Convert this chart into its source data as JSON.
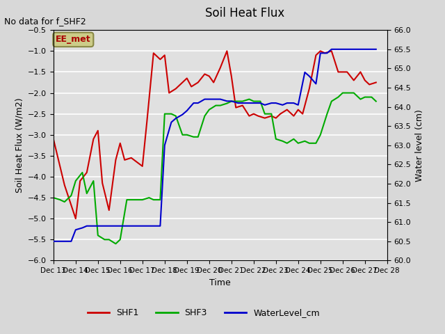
{
  "title": "Soil Heat Flux",
  "note": "No data for f_SHF2",
  "xlabel": "Time",
  "ylabel_left": "Soil Heat Flux (W/m2)",
  "ylabel_right": "Water level (cm)",
  "ylim_left": [
    -6.0,
    -0.5
  ],
  "ylim_right": [
    60.0,
    66.0
  ],
  "yticks_left": [
    -6.0,
    -5.5,
    -5.0,
    -4.5,
    -4.0,
    -3.5,
    -3.0,
    -2.5,
    -2.0,
    -1.5,
    -1.0,
    -0.5
  ],
  "yticks_right": [
    60.0,
    60.5,
    61.0,
    61.5,
    62.0,
    62.5,
    63.0,
    63.5,
    64.0,
    64.5,
    65.0,
    65.5,
    66.0
  ],
  "xtick_labels": [
    "Dec 13",
    "Dec 14",
    "Dec 15",
    "Dec 16",
    "Dec 17",
    "Dec 18",
    "Dec 19",
    "Dec 20",
    "Dec 21",
    "Dec 22",
    "Dec 23",
    "Dec 24",
    "Dec 25",
    "Dec 26",
    "Dec 27",
    "Dec 28"
  ],
  "legend_labels": [
    "SHF1",
    "SHF3",
    "WaterLevel_cm"
  ],
  "legend_colors": [
    "#cc0000",
    "#00aa00",
    "#0000cc"
  ],
  "ee_met_box_color": "#cccc88",
  "ee_met_text_color": "#aa0000",
  "background_color": "#e8e8e8",
  "plot_bg_color": "#e0e0e0",
  "grid_color": "#ffffff",
  "shf1_color": "#cc0000",
  "shf3_color": "#00aa00",
  "water_color": "#0000cc",
  "shf1_x": [
    13,
    13.5,
    14,
    14.2,
    14.5,
    14.8,
    15.0,
    15.2,
    15.5,
    15.8,
    16.0,
    16.2,
    16.5,
    17.0,
    17.2,
    17.5,
    17.8,
    18.0,
    18.2,
    18.5,
    18.8,
    19.0,
    19.2,
    19.5,
    19.8,
    20.0,
    20.2,
    20.5,
    20.8,
    21.0,
    21.2,
    21.5,
    21.8,
    22.0,
    22.2,
    22.5,
    22.8,
    23.0,
    23.2,
    23.5,
    23.8,
    24.0,
    24.2,
    24.5,
    24.8,
    25.0,
    25.2,
    25.5,
    25.8,
    26.0,
    26.2,
    26.5,
    26.8,
    27.0,
    27.2,
    27.5
  ],
  "shf1_y": [
    -3.1,
    -4.2,
    -5.0,
    -4.1,
    -3.9,
    -3.1,
    -2.9,
    -4.15,
    -4.8,
    -3.6,
    -3.2,
    -3.6,
    -3.55,
    -3.75,
    -2.7,
    -1.05,
    -1.2,
    -1.1,
    -2.0,
    -1.9,
    -1.75,
    -1.65,
    -1.85,
    -1.75,
    -1.55,
    -1.6,
    -1.75,
    -1.4,
    -1.0,
    -1.6,
    -2.35,
    -2.3,
    -2.55,
    -2.5,
    -2.55,
    -2.6,
    -2.55,
    -2.6,
    -2.5,
    -2.4,
    -2.55,
    -2.4,
    -2.5,
    -1.9,
    -1.1,
    -1.0,
    -1.05,
    -1.0,
    -1.5,
    -1.5,
    -1.5,
    -1.7,
    -1.5,
    -1.7,
    -1.8,
    -1.75
  ],
  "shf3_x": [
    13,
    13.3,
    13.5,
    13.8,
    14.0,
    14.3,
    14.5,
    14.8,
    15.0,
    15.3,
    15.5,
    15.8,
    16.0,
    16.3,
    16.5,
    17.0,
    17.3,
    17.5,
    17.8,
    18.0,
    18.3,
    18.5,
    18.8,
    19.0,
    19.3,
    19.5,
    19.8,
    20.0,
    20.3,
    20.5,
    20.8,
    21.0,
    21.3,
    21.5,
    21.8,
    22.0,
    22.3,
    22.5,
    22.8,
    23.0,
    23.3,
    23.5,
    23.8,
    24.0,
    24.3,
    24.5,
    24.8,
    25.0,
    25.3,
    25.5,
    25.8,
    26.0,
    26.3,
    26.5,
    26.8,
    27.0,
    27.3,
    27.5
  ],
  "shf3_y": [
    -4.5,
    -4.55,
    -4.6,
    -4.45,
    -4.1,
    -3.9,
    -4.4,
    -4.1,
    -5.4,
    -5.5,
    -5.5,
    -5.6,
    -5.5,
    -4.55,
    -4.55,
    -4.55,
    -4.5,
    -4.55,
    -4.55,
    -2.5,
    -2.5,
    -2.55,
    -3.0,
    -3.0,
    -3.05,
    -3.05,
    -2.55,
    -2.4,
    -2.3,
    -2.3,
    -2.25,
    -2.2,
    -2.2,
    -2.2,
    -2.15,
    -2.2,
    -2.2,
    -2.5,
    -2.5,
    -3.1,
    -3.15,
    -3.2,
    -3.1,
    -3.2,
    -3.15,
    -3.2,
    -3.2,
    -3.0,
    -2.5,
    -2.2,
    -2.1,
    -2.0,
    -2.0,
    -2.0,
    -2.15,
    -2.1,
    -2.1,
    -2.2
  ],
  "water_x": [
    13,
    13.3,
    13.5,
    13.8,
    14.0,
    14.3,
    14.5,
    14.8,
    15.0,
    15.3,
    15.5,
    15.8,
    16.0,
    16.3,
    16.5,
    16.8,
    17.0,
    17.3,
    17.5,
    17.8,
    18.0,
    18.3,
    18.5,
    18.8,
    19.0,
    19.3,
    19.5,
    19.8,
    20.0,
    20.3,
    20.5,
    20.8,
    21.0,
    21.3,
    21.5,
    21.8,
    22.0,
    22.3,
    22.5,
    22.8,
    23.0,
    23.3,
    23.5,
    23.8,
    24.0,
    24.3,
    24.5,
    24.8,
    25.0,
    25.3,
    25.5,
    25.8,
    26.0,
    26.3,
    26.5,
    26.8,
    27.0,
    27.3,
    27.5
  ],
  "water_y": [
    60.5,
    60.5,
    60.5,
    60.5,
    60.8,
    60.85,
    60.9,
    60.9,
    60.9,
    60.9,
    60.9,
    60.9,
    60.9,
    60.9,
    60.9,
    60.9,
    60.9,
    60.9,
    60.9,
    60.9,
    63.0,
    63.6,
    63.7,
    63.8,
    63.9,
    64.1,
    64.1,
    64.2,
    64.2,
    64.2,
    64.2,
    64.15,
    64.15,
    64.1,
    64.1,
    64.1,
    64.1,
    64.1,
    64.05,
    64.1,
    64.1,
    64.05,
    64.1,
    64.1,
    64.05,
    64.9,
    64.8,
    64.6,
    65.4,
    65.4,
    65.5,
    65.5,
    65.5,
    65.5,
    65.5,
    65.5,
    65.5,
    65.5,
    65.5
  ]
}
